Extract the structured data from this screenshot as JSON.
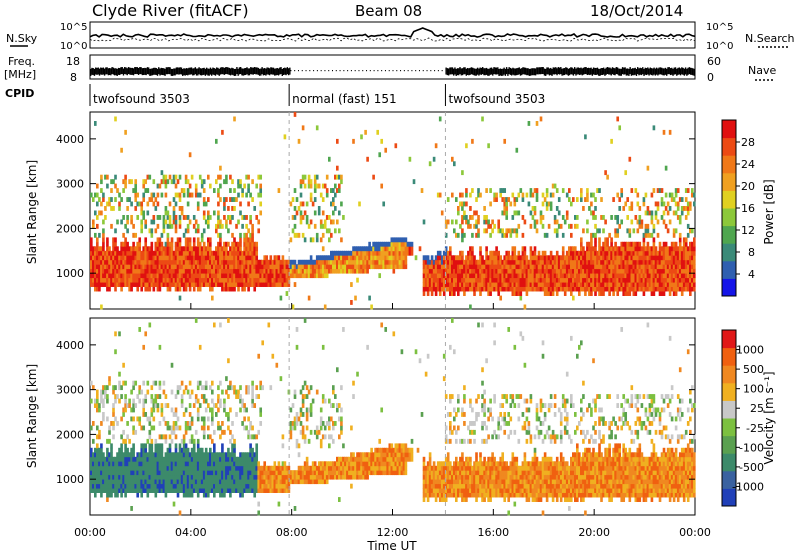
{
  "header": {
    "station": "Clyde River (fitACF)",
    "beam": "Beam 08",
    "date": "18/Oct/2014"
  },
  "noise_panel": {
    "left_label": "N.Sky",
    "right_label": "N.Search",
    "tick_top": "10^5",
    "tick_bottom": "10^0",
    "sky_baseline": 0.5,
    "search_baseline": 0.45
  },
  "freq_panel": {
    "left_label_1": "Freq.",
    "left_label_2": "[MHz]",
    "right_label": "Nave",
    "left_ticks": [
      "18",
      "8"
    ],
    "right_ticks": [
      "60",
      "0"
    ]
  },
  "cpid": {
    "label": "CPID",
    "segments": [
      {
        "start": 0,
        "end": 7.9,
        "text": "twofsound 3503"
      },
      {
        "start": 7.9,
        "end": 14.1,
        "text": "normal (fast) 151"
      },
      {
        "start": 14.1,
        "end": 24,
        "text": "twofsound 3503"
      }
    ]
  },
  "chart_data": [
    {
      "type": "heatmap",
      "name": "power",
      "ylabel": "Slant Range [km]",
      "xlim": [
        "00:00",
        "24:00"
      ],
      "ylim": [
        200,
        4600
      ],
      "yticks": [
        "1000",
        "2000",
        "3000",
        "4000"
      ],
      "colorbar": {
        "label": "Power [dB]",
        "ticks": [
          "4",
          "8",
          "12",
          "16",
          "20",
          "24",
          "28"
        ],
        "colors": [
          "#1515e8",
          "#2f5fb0",
          "#3a8a78",
          "#4fa64f",
          "#8cc83a",
          "#e0d020",
          "#f0a020",
          "#f07818",
          "#ec4a14",
          "#e01010"
        ],
        "range": [
          0,
          32
        ]
      }
    },
    {
      "type": "heatmap",
      "name": "velocity",
      "ylabel": "Slant Range [km]",
      "xlabel": "Time UT",
      "xlim": [
        "00:00",
        "24:00"
      ],
      "ylim": [
        200,
        4600
      ],
      "yticks": [
        "1000",
        "2000",
        "3000",
        "4000"
      ],
      "xticks": [
        "00:00",
        "04:00",
        "08:00",
        "12:00",
        "16:00",
        "20:00",
        "00:00"
      ],
      "colorbar": {
        "label": "Velocity [m s⁻¹]",
        "ticks": [
          "1000",
          "500",
          "100",
          "25",
          "-25",
          "-100",
          "-500",
          "-1000"
        ],
        "colors": [
          "#2040b8",
          "#3a62a0",
          "#3c8a6a",
          "#5aa050",
          "#7cc040",
          "#c8c8c8",
          "#f0b020",
          "#f08820",
          "#f06010",
          "#e01818"
        ]
      }
    }
  ]
}
